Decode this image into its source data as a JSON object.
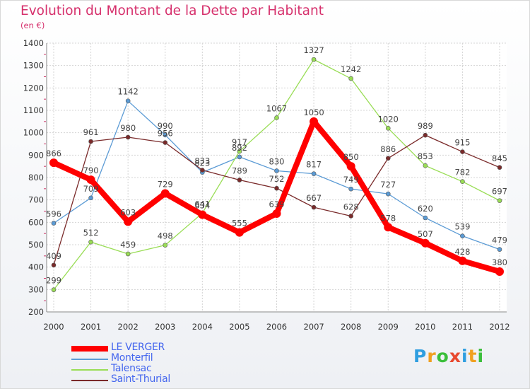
{
  "header": {
    "title": "Evolution du Montant de la Dette par Habitant",
    "unit": "(en €)"
  },
  "logo": {
    "letters": [
      "P",
      "r",
      "o",
      "x",
      "i",
      "t",
      "i"
    ],
    "colors": [
      "#2f9ee0",
      "#f0a020",
      "#3bbf3b",
      "#e8492f",
      "#2f9ee0",
      "#f0a020",
      "#3bbf3b"
    ]
  },
  "chart_data": {
    "type": "line",
    "title": "Evolution du Montant de la Dette par Habitant",
    "ylabel": "(en €)",
    "xlabel": "",
    "x": [
      "2000",
      "2001",
      "2002",
      "2003",
      "2004",
      "2005",
      "2006",
      "2007",
      "2008",
      "2009",
      "2010",
      "2011",
      "2012"
    ],
    "ylim": [
      200,
      1400
    ],
    "yticks": [
      200,
      300,
      400,
      500,
      600,
      700,
      800,
      900,
      1000,
      1100,
      1200,
      1300,
      1400
    ],
    "grid": true,
    "legend": "bottom-left",
    "series": [
      {
        "name": "LE VERGER",
        "color": "#ff0000",
        "values": [
          866,
          790,
          603,
          729,
          634,
          555,
          639,
          1050,
          850,
          578,
          507,
          428,
          380
        ]
      },
      {
        "name": "Monterfil",
        "color": "#5b9bd5",
        "values": [
          596,
          709,
          1142,
          990,
          823,
          892,
          830,
          817,
          749,
          727,
          620,
          539,
          479
        ]
      },
      {
        "name": "Talensac",
        "color": "#99dd55",
        "values": [
          299,
          512,
          459,
          498,
          641,
          917,
          1067,
          1327,
          1242,
          1020,
          853,
          782,
          697
        ]
      },
      {
        "name": "Saint-Thurial",
        "color": "#7a2a2a",
        "values": [
          409,
          961,
          980,
          956,
          833,
          789,
          752,
          667,
          628,
          886,
          989,
          915,
          845
        ]
      }
    ]
  }
}
